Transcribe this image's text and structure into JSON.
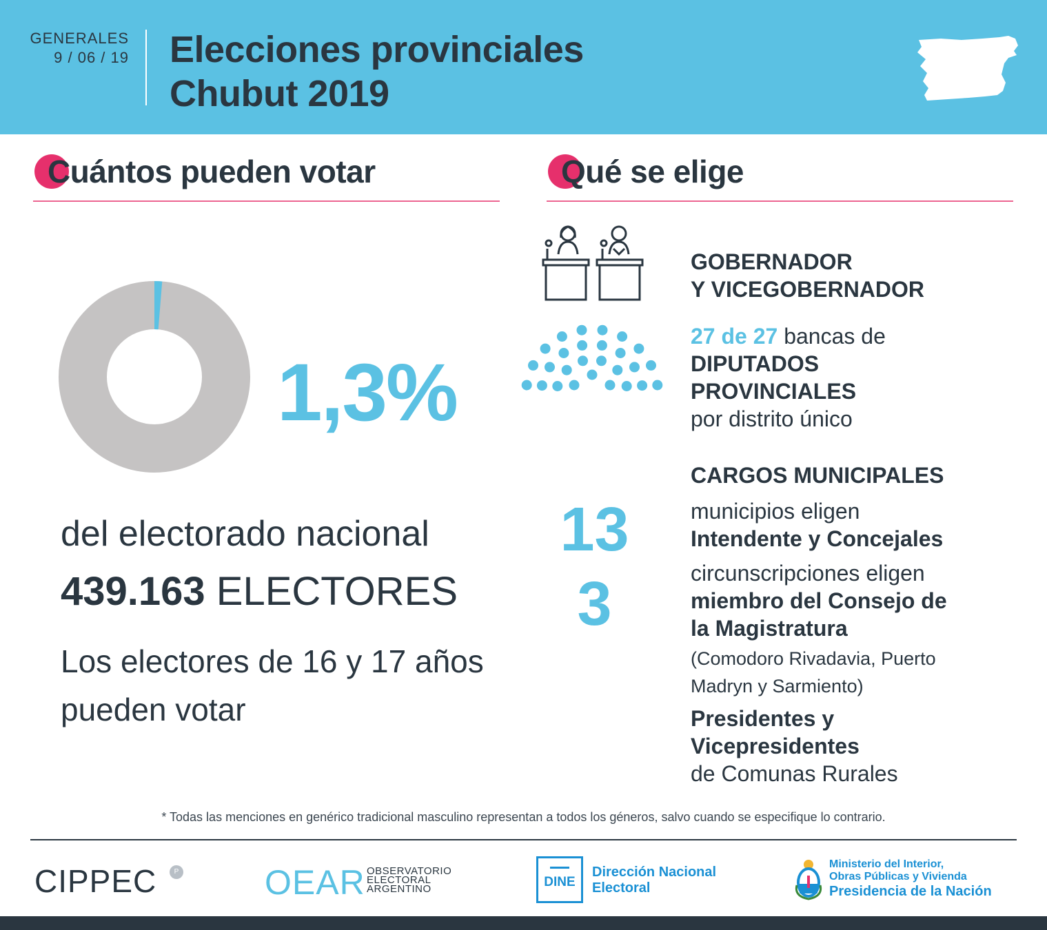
{
  "header": {
    "election_type": "GENERALES",
    "date": "9 / 06 / 19",
    "title_line1": "Elecciones provinciales",
    "title_line2": "Chubut 2019",
    "brand_color": "#5bc1e3",
    "accent_color": "#e6306c"
  },
  "voters": {
    "heading": "Cuántos pueden votar",
    "share_pct": 1.3,
    "share_label": "1,3%",
    "national_label": "del electorado nacional",
    "electors_count": "439.163",
    "electors_label": "ELECTORES",
    "young_voters": "Los electores de 16 y 17 años pueden votar"
  },
  "offices": {
    "heading": "Qué se elige",
    "governor_line1": "GOBERNADOR",
    "governor_line2": "Y VICEGOBERNADOR",
    "deputies_seats": "27 de 27",
    "deputies_seats_suffix": "bancas de",
    "deputies_title_line1": "DIPUTADOS",
    "deputies_title_line2": "PROVINCIALES",
    "deputies_district": "por distrito único",
    "municipal_title": "CARGOS MUNICIPALES",
    "municipalities_count": "13",
    "municipalities_text": "municipios eligen",
    "municipalities_role": "Intendente y Concejales",
    "circumscriptions_count": "3",
    "circumscriptions_text": "circunscripciones eligen",
    "circumscriptions_role_line1": "miembro del Consejo de",
    "circumscriptions_role_line2": "la Magistratura",
    "circumscriptions_places_line1": "(Comodoro Rivadavia, Puerto",
    "circumscriptions_places_line2": "Madryn y Sarmiento)",
    "rural_role_line1": "Presidentes y",
    "rural_role_line2": "Vicepresidentes",
    "rural_text": "de Comunas Rurales"
  },
  "footer": {
    "note": "* Todas las menciones en genérico tradicional masculino representan a todos los géneros, salvo cuando se especifique lo contrario.",
    "cippec": "CIPPEC",
    "oear": "OEAR",
    "oear_line1": "OBSERVATORIO",
    "oear_line2": "ELECTORAL",
    "oear_line3": "ARGENTINO",
    "dine": "DINE",
    "dine_line1": "Dirección Nacional",
    "dine_line2": "Electoral",
    "ministry_line1": "Ministerio del Interior,",
    "ministry_line2": "Obras Públicas y Vivienda",
    "ministry_line3": "Presidencia de la Nación"
  }
}
